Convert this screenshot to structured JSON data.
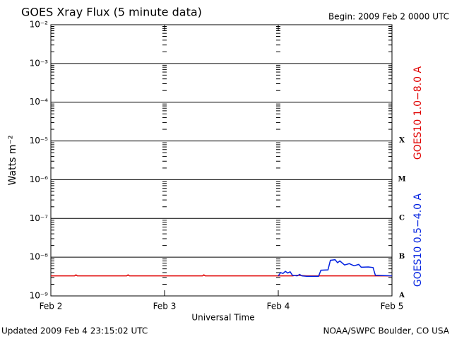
{
  "chart_data": {
    "type": "line",
    "title": "GOES Xray Flux (5 minute data)",
    "subtitle": "Begin:  2009 Feb 2 0000 UTC",
    "ylabel": "Watts m⁻²",
    "xlabel": "Universal Time",
    "footer_left": "Updated 2009 Feb  4 23:15:02 UTC",
    "footer_right": "NOAA/SWPC Boulder, CO USA",
    "log": true,
    "grid": true,
    "xlim": [
      0,
      72
    ],
    "xticks": [
      {
        "value": 0,
        "label": "Feb 2"
      },
      {
        "value": 24,
        "label": "Feb 3"
      },
      {
        "value": 48,
        "label": "Feb 4"
      },
      {
        "value": 72,
        "label": "Feb 5"
      }
    ],
    "ylim": [
      1e-09,
      0.01
    ],
    "yticks": [
      {
        "value": 1e-09,
        "label": "10⁻⁹"
      },
      {
        "value": 1e-08,
        "label": "10⁻⁸"
      },
      {
        "value": 1e-07,
        "label": "10⁻⁷"
      },
      {
        "value": 1e-06,
        "label": "10⁻⁶"
      },
      {
        "value": 1e-05,
        "label": "10⁻⁵"
      },
      {
        "value": 0.0001,
        "label": "10⁻⁴"
      },
      {
        "value": 0.001,
        "label": "10⁻³"
      },
      {
        "value": 0.01,
        "label": "10⁻²"
      }
    ],
    "flare_classes": [
      "X",
      "M",
      "C",
      "B",
      "A"
    ],
    "series": [
      {
        "name": "GOES10 1.0−8.0 A",
        "color": "#e00000",
        "x": [
          0,
          5,
          5.3,
          5.6,
          16,
          16.3,
          16.6,
          32,
          32.3,
          32.6,
          48,
          51,
          52,
          54,
          56,
          60,
          64,
          68,
          72
        ],
        "values": [
          3.3e-09,
          3.3e-09,
          3.5e-09,
          3.3e-09,
          3.3e-09,
          3.5e-09,
          3.3e-09,
          3.3e-09,
          3.5e-09,
          3.3e-09,
          3.3e-09,
          3.3e-09,
          3.4e-09,
          3.3e-09,
          3.3e-09,
          3.3e-09,
          3.3e-09,
          3.3e-09,
          3.3e-09
        ]
      },
      {
        "name": "GOES10 0.5−4.0 A",
        "color": "#0020e0",
        "x": [
          48,
          48.5,
          49,
          49.5,
          50,
          50.5,
          51,
          52,
          52.5,
          53,
          54,
          56.5,
          57,
          58.5,
          59,
          60,
          60.5,
          61,
          62,
          63,
          64,
          65,
          65.5,
          67,
          68,
          68.5,
          72
        ],
        "values": [
          3.3e-09,
          4e-09,
          3.8e-09,
          4.3e-09,
          3.9e-09,
          4.2e-09,
          3.4e-09,
          3.3e-09,
          3.6e-09,
          3.3e-09,
          3.2e-09,
          3.2e-09,
          4.6e-09,
          4.7e-09,
          8.3e-09,
          8.6e-09,
          7.2e-09,
          8e-09,
          6.3e-09,
          6.8e-09,
          6e-09,
          6.5e-09,
          5.5e-09,
          5.6e-09,
          5.4e-09,
          3.4e-09,
          3.3e-09
        ]
      }
    ]
  }
}
